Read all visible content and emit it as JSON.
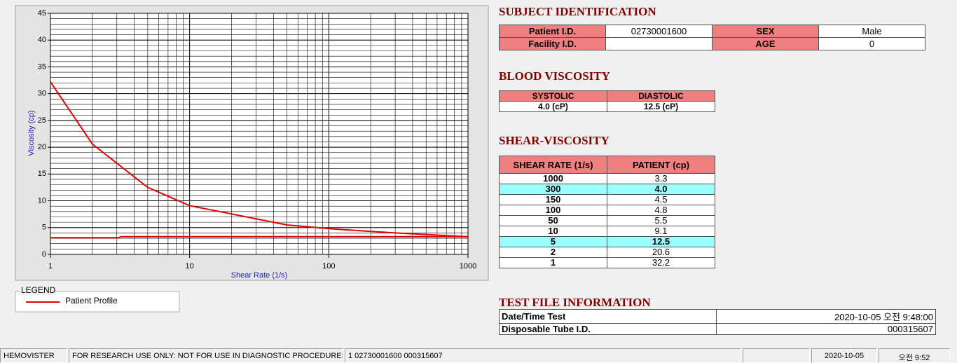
{
  "chart_data": {
    "type": "line",
    "x_label": "Shear Rate (1/s)",
    "y_label": "Viscosity (cp)",
    "xlim": [
      1,
      1000
    ],
    "xticks": [
      1,
      10,
      100,
      1000
    ],
    "x_log": true,
    "ylim": [
      0,
      45
    ],
    "yticks": [
      0,
      5,
      10,
      15,
      20,
      25,
      30,
      35,
      40,
      45
    ],
    "y_minor_step": 1,
    "grid": true,
    "legend_title": "LEGEND",
    "series": [
      {
        "name": "Patient Profile",
        "color": "#e00000",
        "x": [
          1,
          2,
          5,
          10,
          50,
          100,
          150,
          300,
          1000
        ],
        "values": [
          32.2,
          20.6,
          12.5,
          9.1,
          5.5,
          4.8,
          4.5,
          4.0,
          3.3
        ]
      },
      {
        "color": "#e00000",
        "x": [
          1,
          3.1,
          3.2,
          1000
        ],
        "values": [
          3.1,
          3.1,
          3.3,
          3.3
        ]
      }
    ]
  },
  "subject_identification": {
    "title": "SUBJECT IDENTIFICATION",
    "rows": [
      [
        "Patient I.D.",
        "02730001600",
        "SEX",
        "Male"
      ],
      [
        "Facility I.D.",
        null,
        "AGE",
        "0"
      ]
    ]
  },
  "blood_viscosity": {
    "title": "BLOOD VISCOSITY",
    "header": [
      "SYSTOLIC",
      "DIASTOLIC"
    ],
    "values": [
      "4.0 (cP)",
      "12.5 (cP)"
    ]
  },
  "shear_viscosity": {
    "title": "SHEAR-VISCOSITY",
    "header": [
      "SHEAR RATE (1/s)",
      "PATIENT (cp)"
    ],
    "rows": [
      {
        "cells": [
          "1000",
          "3.3"
        ],
        "highlight": false
      },
      {
        "cells": [
          "300",
          "4.0"
        ],
        "highlight": true
      },
      {
        "cells": [
          "150",
          "4.5"
        ],
        "highlight": false
      },
      {
        "cells": [
          "100",
          "4.8"
        ],
        "highlight": false
      },
      {
        "cells": [
          "50",
          "5.5"
        ],
        "highlight": false
      },
      {
        "cells": [
          "10",
          "9.1"
        ],
        "highlight": false
      },
      {
        "cells": [
          "5",
          "12.5"
        ],
        "highlight": true
      },
      {
        "cells": [
          "2",
          "20.6"
        ],
        "highlight": false
      },
      {
        "cells": [
          "1",
          "32.2"
        ],
        "highlight": false
      }
    ]
  },
  "test_file": {
    "title": "TEST FILE INFORMATION",
    "rows": [
      [
        "Date/Time Test",
        "2020-10-05   오전 9:48:00"
      ],
      [
        "Disposable Tube I.D.",
        "000315607"
      ]
    ]
  },
  "status_bar": [
    "HEMOVISTER",
    "FOR RESEARCH USE ONLY: NOT FOR USE IN DIAGNOSTIC PROCEDURES",
    "1  02730001600  000315607",
    null,
    "2020-10-05",
    "오전 9:52"
  ]
}
